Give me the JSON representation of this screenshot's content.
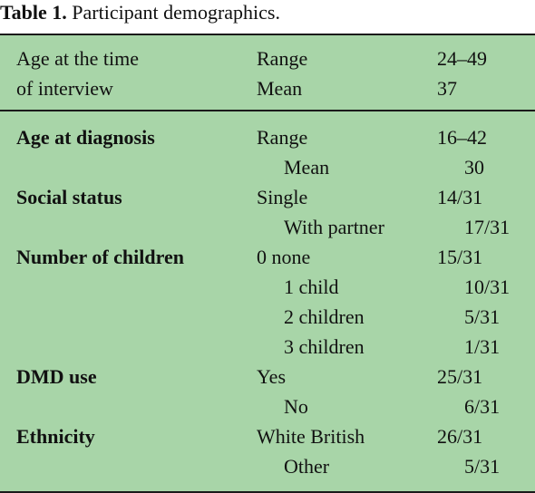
{
  "caption": {
    "label": "Table 1.",
    "text": "Participant demographics."
  },
  "header_rows": [
    {
      "c1": "Age at the time",
      "c2": "Range",
      "c3": "24–49"
    },
    {
      "c1": "of interview",
      "c2": "Mean",
      "c3": "37"
    }
  ],
  "body_rows": [
    {
      "c1": "Age at diagnosis",
      "c2": "Range",
      "c3": "16–42",
      "indent": false
    },
    {
      "c1": "",
      "c2": "Mean",
      "c3": "30",
      "indent": true
    },
    {
      "c1": "Social status",
      "c2": "Single",
      "c3": "14/31",
      "indent": false
    },
    {
      "c1": "",
      "c2": "With partner",
      "c3": "17/31",
      "indent": true
    },
    {
      "c1": "Number of children",
      "c2": "0 none",
      "c3": "15/31",
      "indent": false
    },
    {
      "c1": "",
      "c2": "1 child",
      "c3": "10/31",
      "indent": true
    },
    {
      "c1": "",
      "c2": "2 children",
      "c3": "5/31",
      "indent": true
    },
    {
      "c1": "",
      "c2": "3 children",
      "c3": "1/31",
      "indent": true
    },
    {
      "c1": "DMD use",
      "c2": "Yes",
      "c3": "25/31",
      "indent": false
    },
    {
      "c1": "",
      "c2": "No",
      "c3": "6/31",
      "indent": true
    },
    {
      "c1": "Ethnicity",
      "c2": "White British",
      "c3": "26/31",
      "indent": false
    },
    {
      "c1": "",
      "c2": "Other",
      "c3": "5/31",
      "indent": true
    }
  ]
}
